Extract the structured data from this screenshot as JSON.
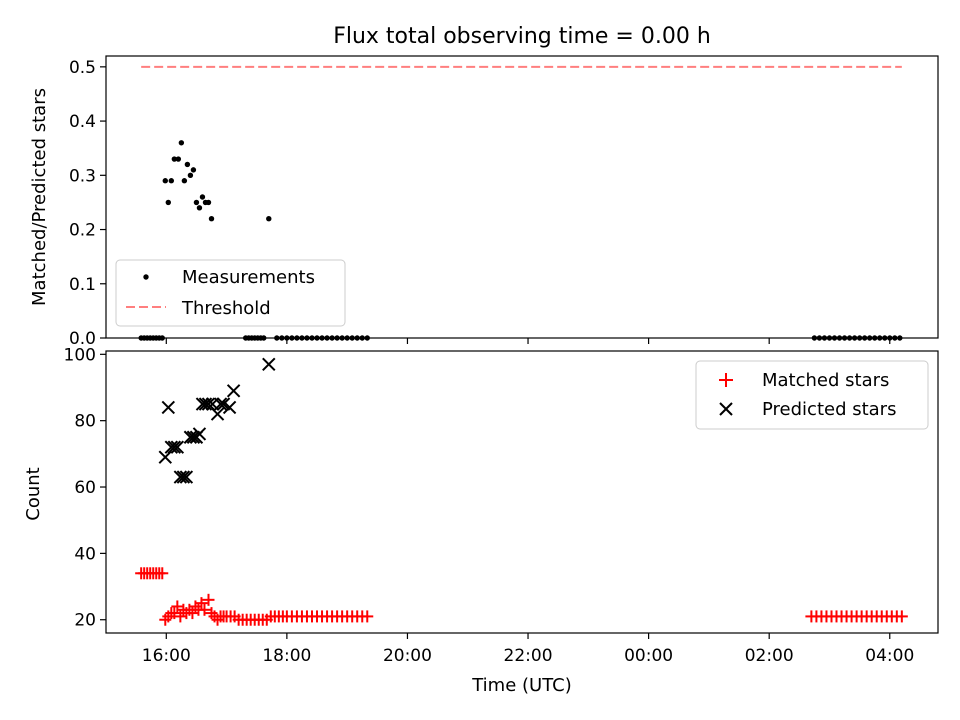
{
  "chart_data": [
    {
      "type": "scatter",
      "title": "Flux total observing time = 0.00 h",
      "xlabel": "",
      "ylabel": "Matched/Predicted stars",
      "x_axis_hours": [
        15,
        28.8
      ],
      "ylim": [
        0,
        0.52
      ],
      "yticks": [
        "0.0",
        "0.1",
        "0.2",
        "0.3",
        "0.4",
        "0.5"
      ],
      "legend_position": "lower-left",
      "legend": [
        "Measurements",
        "Threshold"
      ],
      "colors": {
        "measurements": "#000000",
        "threshold": "#ff7f7f"
      },
      "threshold": {
        "value": 0.5,
        "x_start": "15:35",
        "x_end": "04:12"
      },
      "measurements": [
        {
          "x": "15:35",
          "y": 0.0
        },
        {
          "x": "15:38",
          "y": 0.0
        },
        {
          "x": "15:41",
          "y": 0.0
        },
        {
          "x": "15:44",
          "y": 0.0
        },
        {
          "x": "15:47",
          "y": 0.0
        },
        {
          "x": "15:50",
          "y": 0.0
        },
        {
          "x": "15:53",
          "y": 0.0
        },
        {
          "x": "15:56",
          "y": 0.0
        },
        {
          "x": "15:59",
          "y": 0.29
        },
        {
          "x": "16:02",
          "y": 0.25
        },
        {
          "x": "16:05",
          "y": 0.29
        },
        {
          "x": "16:08",
          "y": 0.33
        },
        {
          "x": "16:12",
          "y": 0.33
        },
        {
          "x": "16:15",
          "y": 0.36
        },
        {
          "x": "16:18",
          "y": 0.29
        },
        {
          "x": "16:21",
          "y": 0.32
        },
        {
          "x": "16:24",
          "y": 0.3
        },
        {
          "x": "16:27",
          "y": 0.31
        },
        {
          "x": "16:30",
          "y": 0.25
        },
        {
          "x": "16:33",
          "y": 0.24
        },
        {
          "x": "16:36",
          "y": 0.26
        },
        {
          "x": "16:39",
          "y": 0.25
        },
        {
          "x": "16:42",
          "y": 0.25
        },
        {
          "x": "16:45",
          "y": 0.22
        },
        {
          "x": "17:42",
          "y": 0.22
        },
        {
          "x": "17:19",
          "y": 0.0
        },
        {
          "x": "17:22",
          "y": 0.0
        },
        {
          "x": "17:25",
          "y": 0.0
        },
        {
          "x": "17:28",
          "y": 0.0
        },
        {
          "x": "17:31",
          "y": 0.0
        },
        {
          "x": "17:34",
          "y": 0.0
        },
        {
          "x": "17:37",
          "y": 0.0
        },
        {
          "x": "17:50",
          "y": 0.0
        },
        {
          "x": "17:55",
          "y": 0.0
        },
        {
          "x": "18:00",
          "y": 0.0
        },
        {
          "x": "18:05",
          "y": 0.0
        },
        {
          "x": "18:10",
          "y": 0.0
        },
        {
          "x": "18:15",
          "y": 0.0
        },
        {
          "x": "18:20",
          "y": 0.0
        },
        {
          "x": "18:25",
          "y": 0.0
        },
        {
          "x": "18:30",
          "y": 0.0
        },
        {
          "x": "18:35",
          "y": 0.0
        },
        {
          "x": "18:40",
          "y": 0.0
        },
        {
          "x": "18:45",
          "y": 0.0
        },
        {
          "x": "18:50",
          "y": 0.0
        },
        {
          "x": "18:55",
          "y": 0.0
        },
        {
          "x": "19:00",
          "y": 0.0
        },
        {
          "x": "19:05",
          "y": 0.0
        },
        {
          "x": "19:10",
          "y": 0.0
        },
        {
          "x": "19:15",
          "y": 0.0
        },
        {
          "x": "19:20",
          "y": 0.0
        },
        {
          "x": "02:45",
          "y": 0.0
        },
        {
          "x": "02:50",
          "y": 0.0
        },
        {
          "x": "02:55",
          "y": 0.0
        },
        {
          "x": "03:00",
          "y": 0.0
        },
        {
          "x": "03:05",
          "y": 0.0
        },
        {
          "x": "03:10",
          "y": 0.0
        },
        {
          "x": "03:15",
          "y": 0.0
        },
        {
          "x": "03:20",
          "y": 0.0
        },
        {
          "x": "03:25",
          "y": 0.0
        },
        {
          "x": "03:30",
          "y": 0.0
        },
        {
          "x": "03:35",
          "y": 0.0
        },
        {
          "x": "03:40",
          "y": 0.0
        },
        {
          "x": "03:45",
          "y": 0.0
        },
        {
          "x": "03:50",
          "y": 0.0
        },
        {
          "x": "03:55",
          "y": 0.0
        },
        {
          "x": "04:00",
          "y": 0.0
        },
        {
          "x": "04:05",
          "y": 0.0
        },
        {
          "x": "04:10",
          "y": 0.0
        }
      ]
    },
    {
      "type": "scatter",
      "title": "",
      "xlabel": "Time (UTC)",
      "ylabel": "Count",
      "x_axis_hours": [
        15,
        28.8
      ],
      "ylim": [
        16,
        101
      ],
      "yticks": [
        "20",
        "40",
        "60",
        "80",
        "100"
      ],
      "xticks": [
        "16:00",
        "18:00",
        "20:00",
        "22:00",
        "00:00",
        "02:00",
        "04:00"
      ],
      "legend_position": "upper-right",
      "legend": [
        "Matched stars",
        "Predicted stars"
      ],
      "colors": {
        "matched": "#ff0000",
        "predicted": "#000000"
      },
      "series": [
        {
          "name": "Matched stars",
          "marker": "+",
          "points": [
            {
              "x": "15:35",
              "y": 34
            },
            {
              "x": "15:38",
              "y": 34
            },
            {
              "x": "15:41",
              "y": 34
            },
            {
              "x": "15:44",
              "y": 34
            },
            {
              "x": "15:47",
              "y": 34
            },
            {
              "x": "15:50",
              "y": 34
            },
            {
              "x": "15:53",
              "y": 34
            },
            {
              "x": "15:56",
              "y": 34
            },
            {
              "x": "15:59",
              "y": 20
            },
            {
              "x": "16:02",
              "y": 21
            },
            {
              "x": "16:05",
              "y": 22
            },
            {
              "x": "16:08",
              "y": 22
            },
            {
              "x": "16:11",
              "y": 24
            },
            {
              "x": "16:14",
              "y": 21
            },
            {
              "x": "16:17",
              "y": 23
            },
            {
              "x": "16:20",
              "y": 22
            },
            {
              "x": "16:23",
              "y": 23
            },
            {
              "x": "16:26",
              "y": 22
            },
            {
              "x": "16:29",
              "y": 24
            },
            {
              "x": "16:32",
              "y": 23
            },
            {
              "x": "16:35",
              "y": 25
            },
            {
              "x": "16:38",
              "y": 23
            },
            {
              "x": "16:42",
              "y": 26
            },
            {
              "x": "16:45",
              "y": 22
            },
            {
              "x": "16:48",
              "y": 21
            },
            {
              "x": "16:51",
              "y": 20
            },
            {
              "x": "16:54",
              "y": 21
            },
            {
              "x": "16:57",
              "y": 21
            },
            {
              "x": "17:00",
              "y": 21
            },
            {
              "x": "17:04",
              "y": 21
            },
            {
              "x": "17:08",
              "y": 21
            },
            {
              "x": "17:12",
              "y": 20
            },
            {
              "x": "17:16",
              "y": 20
            },
            {
              "x": "17:20",
              "y": 20
            },
            {
              "x": "17:24",
              "y": 20
            },
            {
              "x": "17:28",
              "y": 20
            },
            {
              "x": "17:32",
              "y": 20
            },
            {
              "x": "17:36",
              "y": 20
            },
            {
              "x": "17:40",
              "y": 20
            },
            {
              "x": "17:44",
              "y": 21
            },
            {
              "x": "17:48",
              "y": 21
            },
            {
              "x": "17:52",
              "y": 21
            },
            {
              "x": "17:56",
              "y": 21
            },
            {
              "x": "18:00",
              "y": 21
            },
            {
              "x": "18:05",
              "y": 21
            },
            {
              "x": "18:10",
              "y": 21
            },
            {
              "x": "18:15",
              "y": 21
            },
            {
              "x": "18:20",
              "y": 21
            },
            {
              "x": "18:25",
              "y": 21
            },
            {
              "x": "18:30",
              "y": 21
            },
            {
              "x": "18:35",
              "y": 21
            },
            {
              "x": "18:40",
              "y": 21
            },
            {
              "x": "18:45",
              "y": 21
            },
            {
              "x": "18:50",
              "y": 21
            },
            {
              "x": "18:55",
              "y": 21
            },
            {
              "x": "19:00",
              "y": 21
            },
            {
              "x": "19:05",
              "y": 21
            },
            {
              "x": "19:10",
              "y": 21
            },
            {
              "x": "19:15",
              "y": 21
            },
            {
              "x": "19:20",
              "y": 21
            },
            {
              "x": "02:42",
              "y": 21
            },
            {
              "x": "02:47",
              "y": 21
            },
            {
              "x": "02:52",
              "y": 21
            },
            {
              "x": "02:57",
              "y": 21
            },
            {
              "x": "03:02",
              "y": 21
            },
            {
              "x": "03:07",
              "y": 21
            },
            {
              "x": "03:12",
              "y": 21
            },
            {
              "x": "03:17",
              "y": 21
            },
            {
              "x": "03:22",
              "y": 21
            },
            {
              "x": "03:27",
              "y": 21
            },
            {
              "x": "03:32",
              "y": 21
            },
            {
              "x": "03:37",
              "y": 21
            },
            {
              "x": "03:42",
              "y": 21
            },
            {
              "x": "03:47",
              "y": 21
            },
            {
              "x": "03:52",
              "y": 21
            },
            {
              "x": "03:57",
              "y": 21
            },
            {
              "x": "04:02",
              "y": 21
            },
            {
              "x": "04:07",
              "y": 21
            },
            {
              "x": "04:12",
              "y": 21
            }
          ]
        },
        {
          "name": "Predicted stars",
          "marker": "x",
          "points": [
            {
              "x": "15:59",
              "y": 69
            },
            {
              "x": "16:02",
              "y": 84
            },
            {
              "x": "16:05",
              "y": 72
            },
            {
              "x": "16:08",
              "y": 72
            },
            {
              "x": "16:11",
              "y": 72
            },
            {
              "x": "16:14",
              "y": 63
            },
            {
              "x": "16:17",
              "y": 63
            },
            {
              "x": "16:20",
              "y": 63
            },
            {
              "x": "16:24",
              "y": 75
            },
            {
              "x": "16:27",
              "y": 75
            },
            {
              "x": "16:30",
              "y": 75
            },
            {
              "x": "16:33",
              "y": 76
            },
            {
              "x": "16:36",
              "y": 85
            },
            {
              "x": "16:39",
              "y": 85
            },
            {
              "x": "16:42",
              "y": 85
            },
            {
              "x": "16:46",
              "y": 85
            },
            {
              "x": "16:51",
              "y": 82
            },
            {
              "x": "16:54",
              "y": 85
            },
            {
              "x": "16:57",
              "y": 85
            },
            {
              "x": "17:03",
              "y": 84
            },
            {
              "x": "17:07",
              "y": 89
            },
            {
              "x": "17:42",
              "y": 97
            }
          ]
        }
      ]
    }
  ]
}
